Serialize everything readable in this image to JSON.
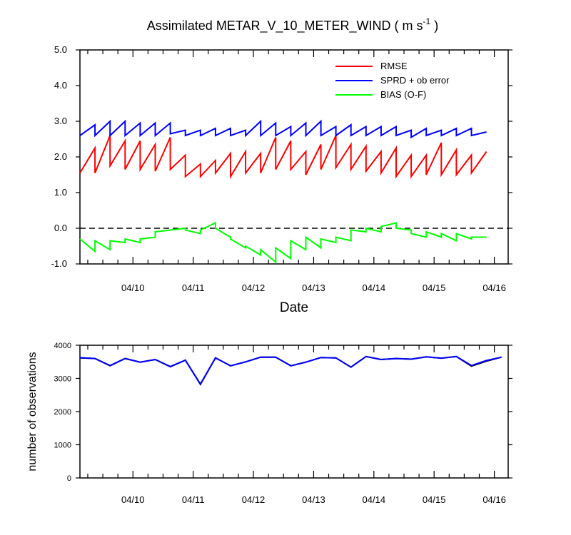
{
  "chart_data": [
    {
      "type": "line",
      "title": "Assimilated METAR_V_10_METER_WIND ( m s",
      "title_sup": "-1",
      "title_end": " )",
      "xlabel": "Date",
      "ylabel": "",
      "ylim": [
        -1.0,
        5.0
      ],
      "yticks": [
        "5.0",
        "4.0",
        "3.0",
        "2.0",
        "1.0",
        "0.0",
        "-1.0"
      ],
      "xlim": [
        9.12,
        16.23
      ],
      "xticks": [
        {
          "x": 10,
          "label": "04/10"
        },
        {
          "x": 11,
          "label": "04/11"
        },
        {
          "x": 12,
          "label": "04/12"
        },
        {
          "x": 13,
          "label": "04/13"
        },
        {
          "x": 14,
          "label": "04/14"
        },
        {
          "x": 15,
          "label": "04/15"
        },
        {
          "x": 16,
          "label": "04/16"
        }
      ],
      "grid": false,
      "legend_position": "top-right",
      "reference_line": {
        "y": 0.0,
        "style": "dashed"
      },
      "series": [
        {
          "name": "RMSE",
          "color": "#ff0000",
          "points": [
            [
              9.12,
              1.55
            ],
            [
              9.37,
              2.25
            ],
            [
              9.37,
              1.55
            ],
            [
              9.62,
              2.6
            ],
            [
              9.62,
              1.75
            ],
            [
              9.87,
              2.45
            ],
            [
              9.87,
              1.65
            ],
            [
              10.12,
              2.45
            ],
            [
              10.12,
              1.65
            ],
            [
              10.37,
              2.35
            ],
            [
              10.37,
              1.6
            ],
            [
              10.62,
              2.55
            ],
            [
              10.62,
              1.65
            ],
            [
              10.87,
              2.05
            ],
            [
              10.87,
              1.45
            ],
            [
              11.12,
              1.8
            ],
            [
              11.12,
              1.45
            ],
            [
              11.37,
              1.9
            ],
            [
              11.37,
              1.55
            ],
            [
              11.62,
              2.1
            ],
            [
              11.62,
              1.45
            ],
            [
              11.87,
              2.15
            ],
            [
              11.87,
              1.55
            ],
            [
              12.12,
              2.1
            ],
            [
              12.12,
              1.55
            ],
            [
              12.37,
              2.55
            ],
            [
              12.37,
              1.65
            ],
            [
              12.62,
              2.45
            ],
            [
              12.62,
              1.65
            ],
            [
              12.87,
              2.15
            ],
            [
              12.87,
              1.5
            ],
            [
              13.12,
              2.35
            ],
            [
              13.12,
              1.65
            ],
            [
              13.37,
              2.6
            ],
            [
              13.37,
              1.7
            ],
            [
              13.62,
              2.35
            ],
            [
              13.62,
              1.65
            ],
            [
              13.87,
              2.3
            ],
            [
              13.87,
              1.6
            ],
            [
              14.12,
              2.15
            ],
            [
              14.12,
              1.55
            ],
            [
              14.37,
              2.25
            ],
            [
              14.37,
              1.45
            ],
            [
              14.62,
              2.05
            ],
            [
              14.62,
              1.45
            ],
            [
              14.87,
              2.05
            ],
            [
              14.87,
              1.5
            ],
            [
              15.12,
              2.4
            ],
            [
              15.12,
              1.5
            ],
            [
              15.37,
              2.2
            ],
            [
              15.37,
              1.5
            ],
            [
              15.62,
              2.05
            ],
            [
              15.62,
              1.55
            ],
            [
              15.87,
              2.15
            ]
          ]
        },
        {
          "name": "SPRD + ob error",
          "color": "#0000ff",
          "points": [
            [
              9.12,
              2.6
            ],
            [
              9.37,
              2.9
            ],
            [
              9.37,
              2.6
            ],
            [
              9.62,
              3.0
            ],
            [
              9.62,
              2.6
            ],
            [
              9.87,
              3.0
            ],
            [
              9.87,
              2.6
            ],
            [
              10.12,
              2.95
            ],
            [
              10.12,
              2.6
            ],
            [
              10.37,
              2.95
            ],
            [
              10.37,
              2.6
            ],
            [
              10.62,
              2.95
            ],
            [
              10.62,
              2.65
            ],
            [
              10.87,
              2.75
            ],
            [
              10.87,
              2.6
            ],
            [
              11.12,
              2.75
            ],
            [
              11.12,
              2.6
            ],
            [
              11.37,
              2.8
            ],
            [
              11.37,
              2.6
            ],
            [
              11.62,
              2.8
            ],
            [
              11.62,
              2.6
            ],
            [
              11.87,
              2.75
            ],
            [
              11.87,
              2.6
            ],
            [
              12.12,
              3.0
            ],
            [
              12.12,
              2.6
            ],
            [
              12.37,
              2.95
            ],
            [
              12.37,
              2.6
            ],
            [
              12.62,
              2.85
            ],
            [
              12.62,
              2.6
            ],
            [
              12.87,
              2.95
            ],
            [
              12.87,
              2.6
            ],
            [
              13.12,
              3.0
            ],
            [
              13.12,
              2.6
            ],
            [
              13.37,
              2.85
            ],
            [
              13.37,
              2.6
            ],
            [
              13.62,
              2.9
            ],
            [
              13.62,
              2.6
            ],
            [
              13.87,
              2.85
            ],
            [
              13.87,
              2.6
            ],
            [
              14.12,
              2.85
            ],
            [
              14.12,
              2.6
            ],
            [
              14.37,
              2.85
            ],
            [
              14.37,
              2.6
            ],
            [
              14.62,
              2.75
            ],
            [
              14.62,
              2.55
            ],
            [
              14.87,
              2.8
            ],
            [
              14.87,
              2.6
            ],
            [
              15.12,
              2.75
            ],
            [
              15.12,
              2.6
            ],
            [
              15.37,
              2.8
            ],
            [
              15.37,
              2.6
            ],
            [
              15.62,
              2.8
            ],
            [
              15.62,
              2.6
            ],
            [
              15.87,
              2.7
            ]
          ]
        },
        {
          "name": "BIAS (O-F)",
          "color": "#00ff00",
          "points": [
            [
              9.12,
              -0.3
            ],
            [
              9.37,
              -0.65
            ],
            [
              9.37,
              -0.35
            ],
            [
              9.62,
              -0.6
            ],
            [
              9.62,
              -0.35
            ],
            [
              9.87,
              -0.4
            ],
            [
              9.87,
              -0.3
            ],
            [
              10.12,
              -0.4
            ],
            [
              10.12,
              -0.3
            ],
            [
              10.37,
              -0.25
            ],
            [
              10.37,
              -0.1
            ],
            [
              10.62,
              -0.05
            ],
            [
              10.62,
              -0.05
            ],
            [
              10.87,
              0.0
            ],
            [
              10.87,
              -0.05
            ],
            [
              11.12,
              -0.15
            ],
            [
              11.12,
              -0.05
            ],
            [
              11.37,
              0.15
            ],
            [
              11.37,
              0.0
            ],
            [
              11.62,
              -0.25
            ],
            [
              11.62,
              -0.3
            ],
            [
              11.87,
              -0.55
            ],
            [
              11.87,
              -0.5
            ],
            [
              12.12,
              -0.75
            ],
            [
              12.12,
              -0.6
            ],
            [
              12.37,
              -0.95
            ],
            [
              12.37,
              -0.55
            ],
            [
              12.62,
              -0.85
            ],
            [
              12.62,
              -0.35
            ],
            [
              12.87,
              -0.6
            ],
            [
              12.87,
              -0.25
            ],
            [
              13.12,
              -0.55
            ],
            [
              13.12,
              -0.3
            ],
            [
              13.37,
              -0.4
            ],
            [
              13.37,
              -0.25
            ],
            [
              13.62,
              -0.35
            ],
            [
              13.62,
              -0.05
            ],
            [
              13.87,
              -0.1
            ],
            [
              13.87,
              0.0
            ],
            [
              14.12,
              -0.1
            ],
            [
              14.12,
              0.05
            ],
            [
              14.37,
              0.15
            ],
            [
              14.37,
              0.0
            ],
            [
              14.62,
              -0.05
            ],
            [
              14.62,
              -0.15
            ],
            [
              14.87,
              -0.25
            ],
            [
              14.87,
              -0.1
            ],
            [
              15.12,
              -0.25
            ],
            [
              15.12,
              -0.15
            ],
            [
              15.37,
              -0.35
            ],
            [
              15.37,
              -0.15
            ],
            [
              15.62,
              -0.3
            ],
            [
              15.62,
              -0.25
            ],
            [
              15.87,
              -0.25
            ]
          ]
        }
      ]
    },
    {
      "type": "line",
      "title": "",
      "xlabel": "",
      "ylabel": "number of observations",
      "ylim": [
        0,
        4000
      ],
      "yticks": [
        "4000",
        "3000",
        "2000",
        "1000",
        "0"
      ],
      "xlim": [
        9.12,
        16.23
      ],
      "xticks": [
        {
          "x": 10,
          "label": "04/10"
        },
        {
          "x": 11,
          "label": "04/11"
        },
        {
          "x": 12,
          "label": "04/12"
        },
        {
          "x": 13,
          "label": "04/13"
        },
        {
          "x": 14,
          "label": "04/14"
        },
        {
          "x": 15,
          "label": "04/15"
        },
        {
          "x": 16,
          "label": "04/16"
        }
      ],
      "grid": false,
      "series": [
        {
          "color": "#000000",
          "points": [
            [
              9.12,
              3620
            ],
            [
              9.37,
              3600
            ],
            [
              9.62,
              3380
            ],
            [
              9.87,
              3600
            ],
            [
              10.12,
              3490
            ],
            [
              10.37,
              3570
            ],
            [
              10.62,
              3350
            ],
            [
              10.87,
              3550
            ],
            [
              11.12,
              2820
            ],
            [
              11.37,
              3620
            ],
            [
              11.62,
              3380
            ],
            [
              11.87,
              3500
            ],
            [
              12.12,
              3640
            ],
            [
              12.37,
              3640
            ],
            [
              12.62,
              3380
            ],
            [
              12.87,
              3490
            ],
            [
              13.12,
              3630
            ],
            [
              13.37,
              3620
            ],
            [
              13.62,
              3340
            ],
            [
              13.87,
              3660
            ],
            [
              14.12,
              3570
            ],
            [
              14.37,
              3600
            ],
            [
              14.62,
              3580
            ],
            [
              14.87,
              3650
            ],
            [
              15.12,
              3610
            ],
            [
              15.37,
              3660
            ],
            [
              15.62,
              3370
            ],
            [
              15.87,
              3520
            ],
            [
              16.12,
              3640
            ]
          ]
        },
        {
          "color": "#0000ff",
          "points": [
            [
              9.12,
              3625
            ],
            [
              9.37,
              3600
            ],
            [
              9.62,
              3390
            ],
            [
              9.87,
              3600
            ],
            [
              10.12,
              3490
            ],
            [
              10.37,
              3570
            ],
            [
              10.62,
              3360
            ],
            [
              10.87,
              3550
            ],
            [
              11.12,
              2830
            ],
            [
              11.37,
              3620
            ],
            [
              11.62,
              3380
            ],
            [
              11.87,
              3500
            ],
            [
              12.12,
              3640
            ],
            [
              12.37,
              3640
            ],
            [
              12.62,
              3380
            ],
            [
              12.87,
              3490
            ],
            [
              13.12,
              3630
            ],
            [
              13.37,
              3620
            ],
            [
              13.62,
              3340
            ],
            [
              13.87,
              3660
            ],
            [
              14.12,
              3570
            ],
            [
              14.37,
              3600
            ],
            [
              14.62,
              3580
            ],
            [
              14.87,
              3650
            ],
            [
              15.12,
              3610
            ],
            [
              15.37,
              3660
            ],
            [
              15.62,
              3390
            ],
            [
              15.87,
              3540
            ],
            [
              16.12,
              3640
            ]
          ]
        }
      ]
    }
  ]
}
